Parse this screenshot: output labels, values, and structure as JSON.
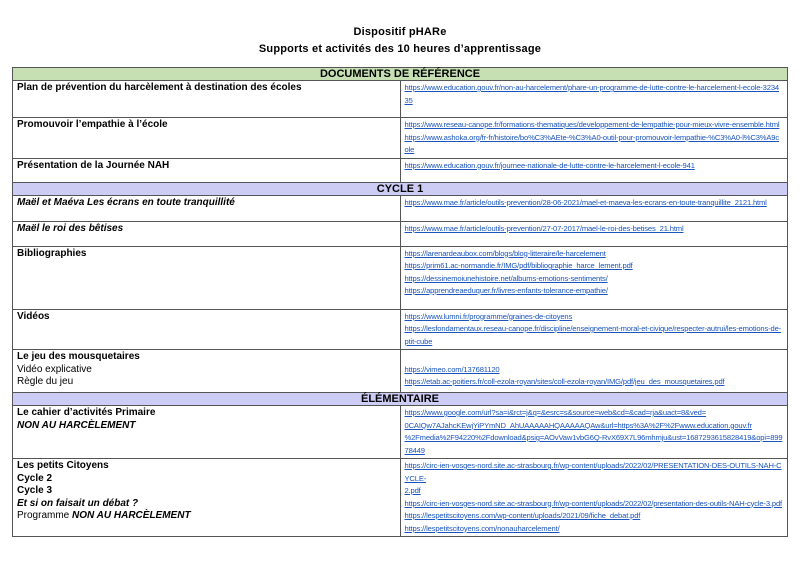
{
  "title": "Dispositif pHARe",
  "subtitle": "Supports et activités des 10 heures d’apprentissage",
  "sections": [
    {
      "heading": "DOCUMENTS DE RÉFÉRENCE",
      "color": "#c6e0b4"
    },
    {
      "heading": "CYCLE 1",
      "color": "#ccccf5"
    },
    {
      "heading": "ÉLÉMENTAIRE",
      "color": "#ccccf5"
    }
  ],
  "rows": {
    "plan": {
      "label": "Plan de prévention du harcèlement à destination des écoles",
      "links": [
        "https://www.education.gouv.fr/non-au-harcelement/phare-un-programme-de-lutte-contre-le-harcelement-l-ecole-323435"
      ]
    },
    "empathie": {
      "label": "Promouvoir l’empathie à l’école",
      "links": [
        "https://www.reseau-canope.fr/formations-thematiques/developpement-de-lempathie-pour-mieux-vivre-ensemble.html",
        "https://www.ashoka.org/fr-fr/histoire/bo%C3%AEte-%C3%A0-outil-pour-promouvoir-lempathie-%C3%A0-l%C3%A9cole"
      ]
    },
    "journee": {
      "label": "Présentation de la Journée NAH",
      "links": [
        "https://www.education.gouv.fr/journee-nationale-de-lutte-contre-le-harcelement-l-ecole-941"
      ]
    },
    "mael_maeva": {
      "label": "Maël et Maéva Les écrans en toute tranquillité",
      "links": [
        "https://www.mae.fr/article/outils-prevention/28-06-2021/mael-et-maeva-les-ecrans-en-toute-tranquillite_2121.html"
      ]
    },
    "mael_roi": {
      "label": "Maël le roi des bêtises",
      "links": [
        "https://www.mae.fr/article/outils-prevention/27-07-2017/mael-le-roi-des-betises_21.html"
      ]
    },
    "biblio": {
      "label": "Bibliographies",
      "links": [
        "https://larenardeaubox.com/blogs/blog-litteraire/le-harcelement",
        "https://prim61.ac-normandie.fr/IMG/pdf/bibliographie_harce_lement.pdf",
        "https://dessinemoiunehistoire.net/albums-emotions-sentiments/",
        "https://apprendreaeduquer.fr/livres-enfants-tolerance-empathie/"
      ]
    },
    "videos": {
      "label": "Vidéos",
      "links": [
        "https://www.lumni.fr/programme/graines-de-citoyens",
        "https://lesfondamentaux.reseau-canope.fr/discipline/enseignement-moral-et-civique/respecter-autrui/les-emotions-de-ptit-cube"
      ]
    },
    "mousquetaires": {
      "label": "Le jeu des mousquetaires",
      "sub1": "Vidéo explicative",
      "sub2": "Règle du jeu",
      "links": [
        "https://vimeo.com/137681120",
        "https://etab.ac-poitiers.fr/coll-ezola-royan/sites/coll-ezola-royan/IMG/pdf/jeu_des_mousquetaires.pdf"
      ]
    },
    "cahier": {
      "label": "Le cahier d’activités Primaire",
      "label2": "NON AU HARCÈLEMENT",
      "links": [
        "https://www.google.com/url?sa=i&rct=j&q=&esrc=s&source=web&cd=&cad=rja&uact=8&ved=",
        "0CAIQw7AJahcKEwjYiPYmND_AhUAAAAAHQAAAAAQAw&url=https%3A%2F%2Fwww.education.gouv.fr",
        "%2Fmedia%2F94220%2Fdownload&psig=AOvVaw1vbG6Q-RvX69X7L96mhmju&ust=1687293615828419&opi=89978449"
      ]
    },
    "citoyens": {
      "label": "Les petits Citoyens",
      "c2": "Cycle 2",
      "c3": "Cycle 3",
      "debat": "Et si on faisait un débat ?",
      "prog": "Programme",
      "prog_it": "NON AU HARCÈLEMENT",
      "links": [
        "https://circ-ien-vosges-nord.site.ac-strasbourg.fr/wp-content/uploads/2022/02/PRESENTATION-DES-OUTILS-NAH-CYCLE-",
        "2.pdf",
        "https://circ-ien-vosges-nord.site.ac-strasbourg.fr/wp-content/uploads/2022/02/presentation-des-outils-NAH-cycle-3.pdf",
        "https://lespetitscitoyens.com/wp-content/uploads/2021/09/fiche_debat.pdf",
        "https://lespetitscitoyens.com/nonauharcelement/"
      ]
    }
  }
}
